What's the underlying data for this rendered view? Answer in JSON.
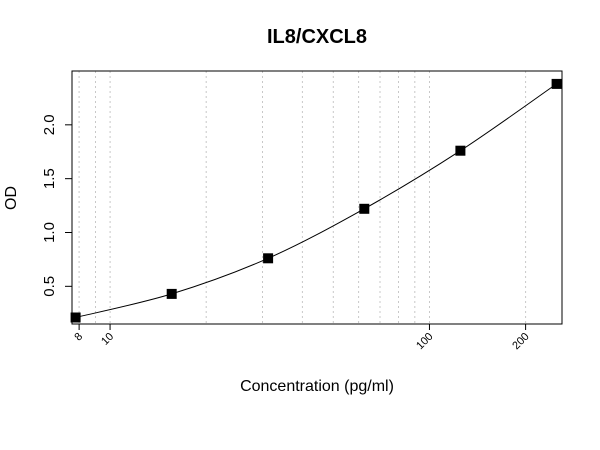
{
  "chart_data": {
    "type": "scatter",
    "title": "IL8/CXCL8",
    "xlabel": "Concentration (pg/ml)",
    "ylabel": "OD",
    "x_scale": "log",
    "xlim": [
      7.6,
      260
    ],
    "ylim": [
      0.15,
      2.5
    ],
    "x_ticks": [
      8,
      10,
      100,
      200
    ],
    "x_tick_labels": [
      "8",
      "10",
      "100",
      "200"
    ],
    "y_ticks": [
      0.5,
      1.0,
      1.5,
      2.0
    ],
    "y_tick_labels": [
      "0.5",
      "1.0",
      "1.5",
      "2.0"
    ],
    "x_gridlines": [
      8,
      9,
      10,
      20,
      30,
      40,
      50,
      60,
      70,
      80,
      90,
      100,
      200
    ],
    "grid": "vertical dotted",
    "series": [
      {
        "marker": "square",
        "color": "#000000",
        "x": [
          7.8,
          15.6,
          31.25,
          62.5,
          125,
          250
        ],
        "y": [
          0.21,
          0.43,
          0.76,
          1.22,
          1.76,
          2.38
        ]
      }
    ],
    "fit_curve": "smooth"
  }
}
